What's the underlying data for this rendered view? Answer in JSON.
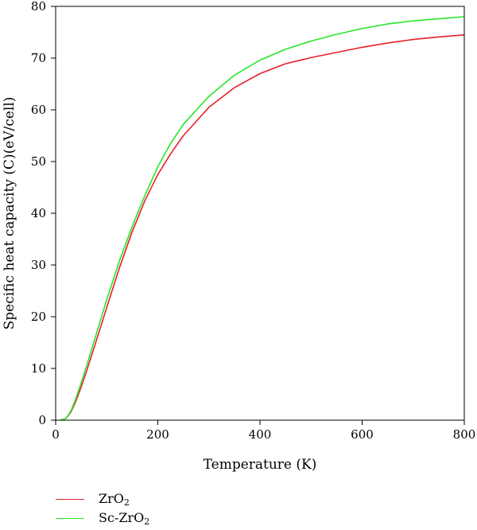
{
  "chart_data": {
    "type": "line",
    "title": "",
    "xlabel": "Temperature (K)",
    "ylabel": "Specific heat capacity (C)(eV/cell)",
    "xlim": [
      0,
      800
    ],
    "ylim": [
      0,
      80
    ],
    "xticks": [
      0,
      200,
      400,
      600,
      800
    ],
    "yticks": [
      0,
      10,
      20,
      30,
      40,
      50,
      60,
      70,
      80
    ],
    "grid": false,
    "legend_position": "bottom-left outside",
    "series": [
      {
        "name": "ZrO2",
        "display_base": "ZrO",
        "display_sub": "2",
        "color": "#e8202a",
        "x": [
          10,
          20,
          30,
          40,
          50,
          60,
          80,
          100,
          125,
          150,
          175,
          200,
          225,
          250,
          300,
          350,
          400,
          450,
          500,
          550,
          600,
          650,
          700,
          750,
          800
        ],
        "y": [
          0,
          0.3,
          1.6,
          3.8,
          6.4,
          9.3,
          15.5,
          21.8,
          29.5,
          36.5,
          42.5,
          47.5,
          51.5,
          55,
          60.5,
          64.3,
          67,
          68.9,
          70.1,
          71.1,
          72.1,
          72.9,
          73.6,
          74.1,
          74.5
        ]
      },
      {
        "name": "Sc-ZrO2",
        "display_base": "Sc-ZrO",
        "display_sub": "2",
        "color": "#27e627",
        "x": [
          10,
          20,
          30,
          40,
          50,
          60,
          80,
          100,
          125,
          150,
          175,
          200,
          225,
          250,
          300,
          350,
          400,
          450,
          500,
          550,
          600,
          650,
          700,
          750,
          800
        ],
        "y": [
          0,
          0.3,
          1.8,
          4.3,
          7.2,
          10.3,
          16.8,
          23.3,
          30.8,
          37.5,
          43.5,
          49,
          53.5,
          57.2,
          62.6,
          66.7,
          69.6,
          71.7,
          73.3,
          74.6,
          75.7,
          76.6,
          77.2,
          77.6,
          78
        ]
      }
    ]
  }
}
